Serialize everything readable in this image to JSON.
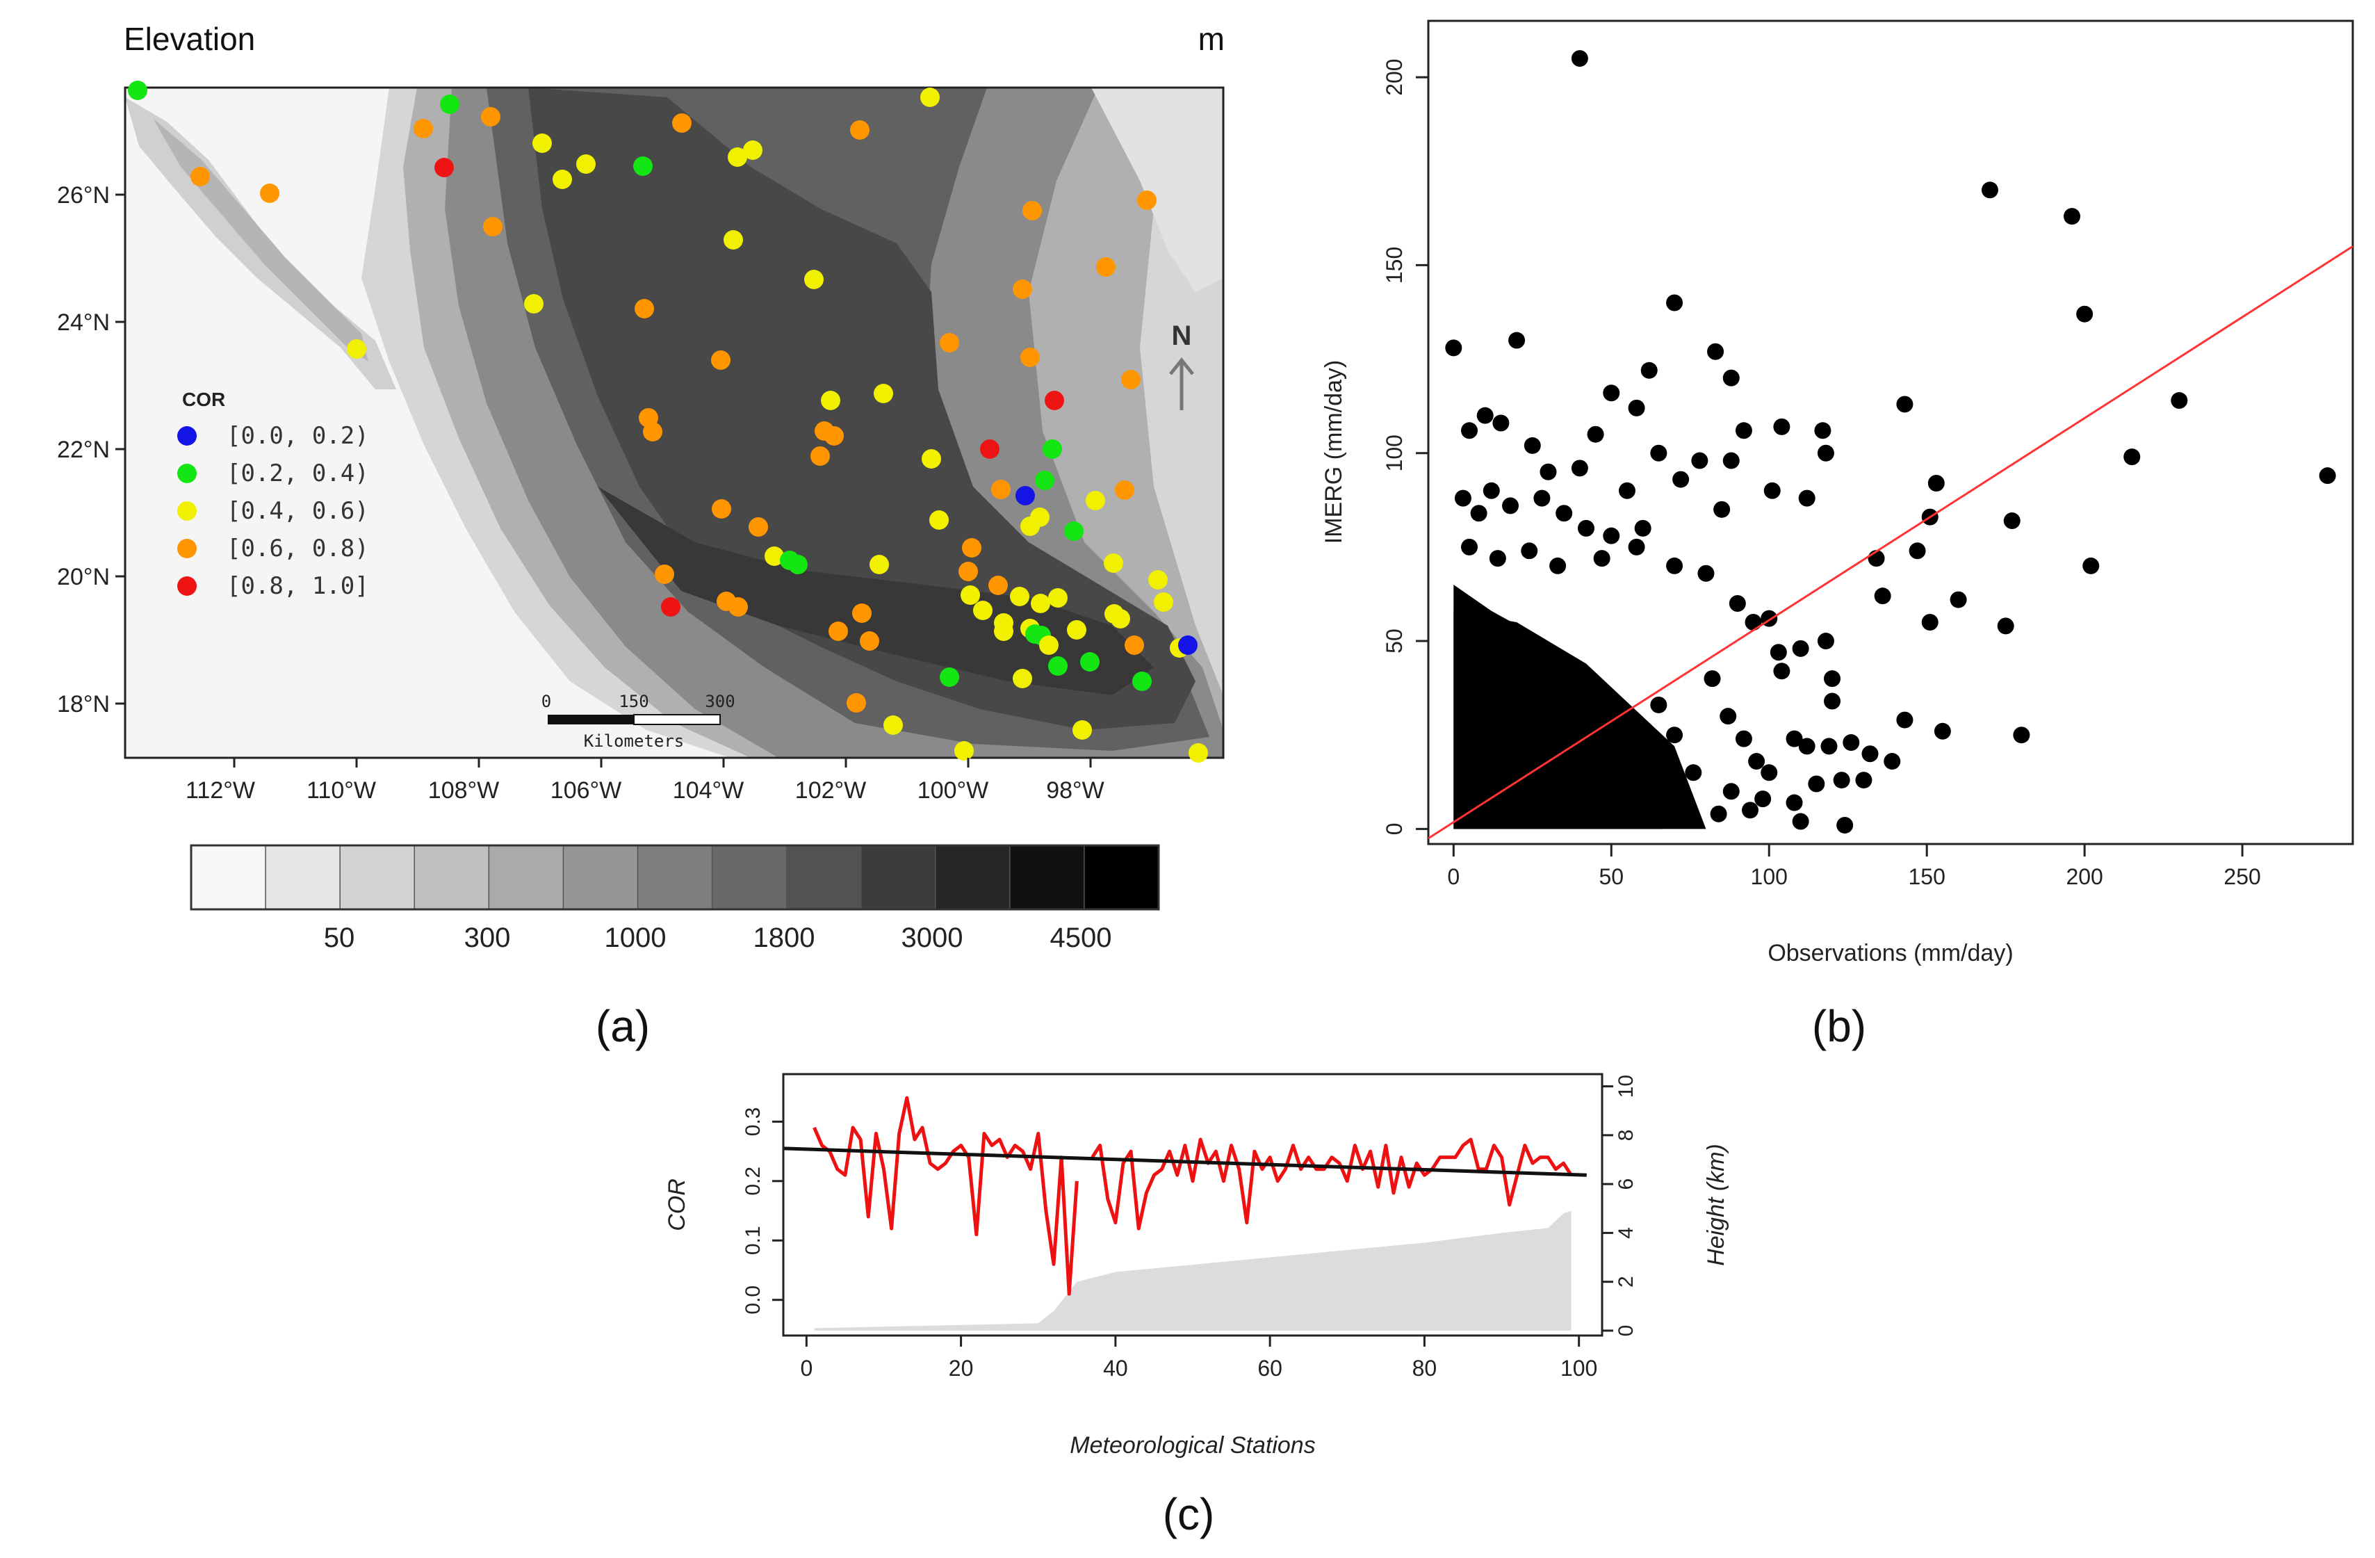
{
  "panel_a": {
    "title": "Elevation",
    "unit": "m",
    "north_label": "N",
    "lat_ticks": [
      "26°N",
      "24°N",
      "22°N",
      "20°N",
      "18°N"
    ],
    "lon_ticks": [
      "112°W",
      "110°W",
      "108°W",
      "106°W",
      "104°W",
      "102°W",
      "100°W",
      "98°W"
    ],
    "legend_title": "COR",
    "legend": [
      {
        "label": "[0.0, 0.2)",
        "color": "#1414e6"
      },
      {
        "label": "[0.2, 0.4)",
        "color": "#14e614"
      },
      {
        "label": "[0.4, 0.6)",
        "color": "#f0f000"
      },
      {
        "label": "[0.6, 0.8)",
        "color": "#ff9600"
      },
      {
        "label": "[0.8, 1.0]",
        "color": "#ee1414"
      }
    ],
    "scalebar": {
      "ticks": [
        "0",
        "150",
        "300"
      ],
      "unit": "Kilometers"
    },
    "colorbar": {
      "colors": [
        "#f7f7f7",
        "#e6e6e6",
        "#d3d3d3",
        "#bfbfbf",
        "#aaaaaa",
        "#959595",
        "#7e7e7e",
        "#686868",
        "#525252",
        "#3c3c3c",
        "#262626",
        "#111111",
        "#000000"
      ],
      "labels": [
        "50",
        "300",
        "1000",
        "1800",
        "3000",
        "4500"
      ]
    },
    "label": "(a)"
  },
  "chart_data": [
    {
      "type": "scatter",
      "xlabel": "Observations (mm/day)",
      "ylabel": "IMERG (mm/day)",
      "xlim": [
        -8,
        285
      ],
      "ylim": [
        -4,
        215
      ],
      "xticks": [
        0,
        50,
        100,
        150,
        200,
        250
      ],
      "yticks": [
        0,
        50,
        100,
        150,
        200
      ],
      "points": [
        [
          40,
          205
        ],
        [
          170,
          170
        ],
        [
          196,
          163
        ],
        [
          200,
          137
        ],
        [
          230,
          114
        ],
        [
          215,
          99
        ],
        [
          277,
          94
        ],
        [
          202,
          70
        ],
        [
          177,
          82
        ],
        [
          175,
          54
        ],
        [
          180,
          25
        ],
        [
          153,
          92
        ],
        [
          151,
          83
        ],
        [
          151,
          55
        ],
        [
          147,
          74
        ],
        [
          143,
          113
        ],
        [
          134,
          72
        ],
        [
          136,
          62
        ],
        [
          160,
          61
        ],
        [
          155,
          26
        ],
        [
          143,
          29
        ],
        [
          126,
          23
        ],
        [
          123,
          13
        ],
        [
          130,
          13
        ],
        [
          112,
          22
        ],
        [
          119,
          22
        ],
        [
          115,
          12
        ],
        [
          108,
          7
        ],
        [
          124,
          1
        ],
        [
          110,
          2
        ],
        [
          117,
          106
        ],
        [
          118,
          100
        ],
        [
          104,
          107
        ],
        [
          112,
          88
        ],
        [
          101,
          90
        ],
        [
          100,
          56
        ],
        [
          103,
          47
        ],
        [
          92,
          106
        ],
        [
          88,
          98
        ],
        [
          85,
          85
        ],
        [
          70,
          140
        ],
        [
          83,
          127
        ],
        [
          88,
          120
        ],
        [
          78,
          98
        ],
        [
          62,
          122
        ],
        [
          58,
          112
        ],
        [
          65,
          100
        ],
        [
          72,
          93
        ],
        [
          50,
          116
        ],
        [
          55,
          90
        ],
        [
          60,
          80
        ],
        [
          45,
          105
        ],
        [
          40,
          96
        ],
        [
          20,
          130
        ],
        [
          0,
          128
        ],
        [
          5,
          106
        ],
        [
          10,
          110
        ],
        [
          15,
          108
        ],
        [
          25,
          102
        ],
        [
          30,
          95
        ],
        [
          3,
          88
        ],
        [
          8,
          84
        ],
        [
          12,
          90
        ],
        [
          18,
          86
        ],
        [
          28,
          88
        ],
        [
          35,
          84
        ],
        [
          42,
          80
        ],
        [
          50,
          78
        ],
        [
          5,
          75
        ],
        [
          14,
          72
        ],
        [
          24,
          74
        ],
        [
          33,
          70
        ],
        [
          47,
          72
        ],
        [
          58,
          75
        ],
        [
          70,
          70
        ],
        [
          80,
          68
        ],
        [
          90,
          60
        ],
        [
          95,
          55
        ],
        [
          104,
          42
        ],
        [
          110,
          48
        ],
        [
          118,
          50
        ],
        [
          120,
          40
        ],
        [
          82,
          40
        ],
        [
          87,
          30
        ],
        [
          92,
          24
        ],
        [
          96,
          18
        ],
        [
          100,
          15
        ],
        [
          88,
          10
        ],
        [
          76,
          15
        ],
        [
          70,
          25
        ],
        [
          65,
          33
        ],
        [
          120,
          34
        ],
        [
          132,
          20
        ],
        [
          139,
          18
        ],
        [
          108,
          24
        ],
        [
          98,
          8
        ],
        [
          94,
          5
        ],
        [
          84,
          4
        ]
      ],
      "fit_line": {
        "x": [
          -8,
          285
        ],
        "y": [
          -2.5,
          155
        ],
        "color": "#ff3333"
      },
      "label": "(b)"
    },
    {
      "type": "line",
      "xlabel": "Meteorological Stations",
      "ylabel": "COR",
      "y2label": "Height (km)",
      "xlim": [
        -3,
        103
      ],
      "ylim": [
        -0.06,
        0.38
      ],
      "y2lim": [
        -0.2,
        10.5
      ],
      "xticks": [
        0,
        20,
        40,
        60,
        80,
        100
      ],
      "yticks": [
        0.0,
        0.1,
        0.2,
        0.3
      ],
      "y2ticks": [
        0,
        2,
        4,
        6,
        8,
        10
      ],
      "series": [
        {
          "name": "COR",
          "color": "#ee1111",
          "x": [
            1,
            2,
            3,
            4,
            5,
            6,
            7,
            8,
            9,
            10,
            11,
            12,
            13,
            14,
            15,
            16,
            17,
            18,
            19,
            20,
            21,
            22,
            23,
            24,
            25,
            26,
            27,
            28,
            29,
            30,
            31,
            32,
            33,
            34,
            35,
            36,
            37,
            38,
            39,
            40,
            41,
            42,
            43,
            44,
            45,
            46,
            47,
            48,
            49,
            50,
            51,
            52,
            53,
            54,
            55,
            56,
            57,
            58,
            59,
            60,
            61,
            62,
            63,
            64,
            65,
            66,
            67,
            68,
            69,
            70,
            71,
            72,
            73,
            74,
            75,
            76,
            77,
            78,
            79,
            80,
            81,
            82,
            83,
            84,
            85,
            86,
            87,
            88,
            89,
            90,
            91,
            92,
            93,
            94,
            95,
            96,
            97,
            98,
            99
          ],
          "values": [
            0.29,
            0.26,
            0.25,
            0.22,
            0.21,
            0.29,
            0.27,
            0.14,
            0.28,
            0.22,
            0.12,
            0.28,
            0.34,
            0.27,
            0.29,
            0.23,
            0.22,
            0.23,
            0.25,
            0.26,
            0.24,
            0.11,
            0.28,
            0.26,
            0.27,
            0.24,
            0.26,
            0.25,
            0.22,
            0.28,
            0.15,
            0.06,
            0.24,
            0.01,
            0.2,
            null,
            0.24,
            0.26,
            0.17,
            0.13,
            0.23,
            0.25,
            0.12,
            0.18,
            0.21,
            0.22,
            0.25,
            0.21,
            0.26,
            0.2,
            0.27,
            0.23,
            0.25,
            0.2,
            0.26,
            0.22,
            0.13,
            0.25,
            0.22,
            0.24,
            0.2,
            0.22,
            0.26,
            0.22,
            0.24,
            0.22,
            0.22,
            0.24,
            0.23,
            0.2,
            0.26,
            0.22,
            0.25,
            0.19,
            0.26,
            0.18,
            0.24,
            0.19,
            0.23,
            0.21,
            0.22,
            0.24,
            0.24,
            0.24,
            0.26,
            0.27,
            0.22,
            0.22,
            0.26,
            0.24,
            0.16,
            0.21,
            0.26,
            0.23,
            0.24,
            0.24,
            0.22,
            0.23,
            0.21
          ]
        },
        {
          "name": "Trend",
          "color": "#111111",
          "x": [
            -3,
            101
          ],
          "values": [
            0.255,
            0.21
          ]
        }
      ],
      "height_km": {
        "x": [
          1,
          30,
          32,
          33,
          34,
          35,
          40,
          60,
          80,
          90,
          96,
          98,
          99
        ],
        "values": [
          0.1,
          0.3,
          0.8,
          1.2,
          1.6,
          2.0,
          2.4,
          3.0,
          3.6,
          4.0,
          4.2,
          4.8,
          4.9
        ]
      },
      "label": "(c)"
    }
  ]
}
